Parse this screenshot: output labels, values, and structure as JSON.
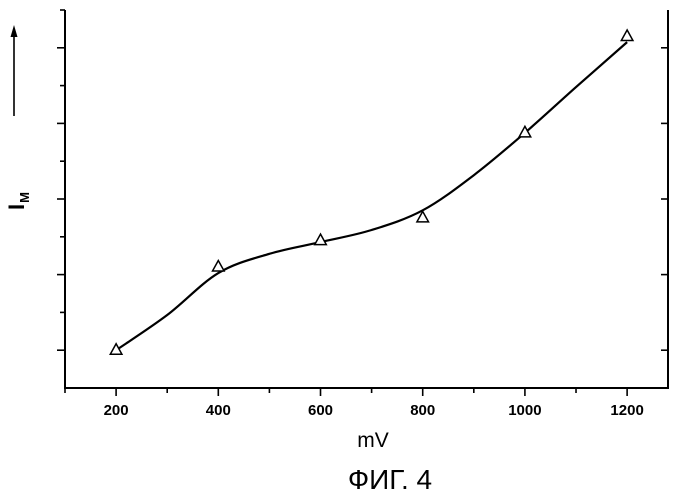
{
  "chart_data": {
    "type": "scatter",
    "xlabel": "mV",
    "ylabel": {
      "main": "I",
      "sub": "M"
    },
    "xlim": [
      100,
      1280
    ],
    "ylim": [
      0,
      10
    ],
    "xticks": [
      200,
      400,
      600,
      800,
      1000,
      1200
    ],
    "xticks_minor": [
      100,
      300,
      500,
      700,
      900,
      1100
    ],
    "yticks_major": [
      1,
      3,
      5,
      7,
      9
    ],
    "yticks_minor": [
      2,
      4,
      6,
      8,
      10
    ],
    "y_tick_labels": [],
    "grid": false,
    "series": [
      {
        "style": "open-triangle-markers",
        "x": [
          200,
          400,
          600,
          800,
          1000,
          1200
        ],
        "y": [
          1.0,
          3.2,
          3.9,
          4.5,
          6.75,
          9.3
        ]
      },
      {
        "style": "smooth-line",
        "x": [
          200,
          300,
          400,
          500,
          600,
          700,
          800,
          900,
          1000,
          1100,
          1200
        ],
        "y": [
          1.0,
          1.93,
          3.04,
          3.55,
          3.86,
          4.18,
          4.7,
          5.63,
          6.75,
          7.96,
          9.15
        ]
      }
    ]
  },
  "caption": "ФИГ. 4",
  "icons": {
    "y_axis_arrow": "arrow-up-icon"
  },
  "colors": {
    "ink": "#000000",
    "background": "#ffffff"
  }
}
